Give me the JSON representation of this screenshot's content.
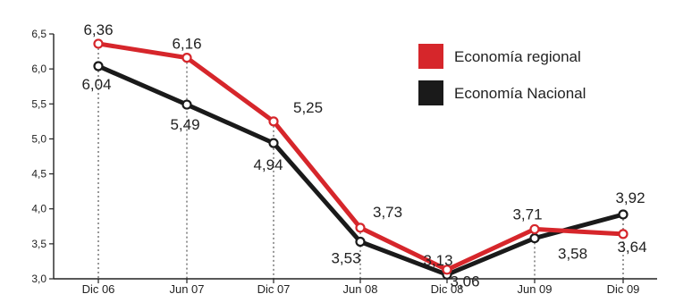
{
  "chart_data": {
    "type": "line",
    "categories": [
      "Dic 06",
      "Jun 07",
      "Dic 07",
      "Jun 08",
      "Dic 08",
      "Jun 09",
      "Dic 09"
    ],
    "y_ticks": [
      "3,0",
      "3,5",
      "4,0",
      "4,5",
      "5,0",
      "5,5",
      "6,0",
      "6,5"
    ],
    "ylim": [
      3.0,
      6.5
    ],
    "grid": false,
    "legend_position": "top-right",
    "series": [
      {
        "name": "Economía regional",
        "color": "#d6262b",
        "values": [
          6.36,
          6.16,
          5.25,
          3.73,
          3.13,
          3.71,
          3.64
        ],
        "labels": [
          "6,36",
          "6,16",
          "5,25",
          "3,73",
          "3,13",
          "3,71",
          "3,64"
        ]
      },
      {
        "name": "Economía Nacional",
        "color": "#1a1a1a",
        "values": [
          6.04,
          5.49,
          4.94,
          3.53,
          3.06,
          3.58,
          3.92
        ],
        "labels": [
          "6,04",
          "5,49",
          "4,94",
          "3,53",
          "3,06",
          "3,58",
          "3,92"
        ]
      }
    ]
  }
}
